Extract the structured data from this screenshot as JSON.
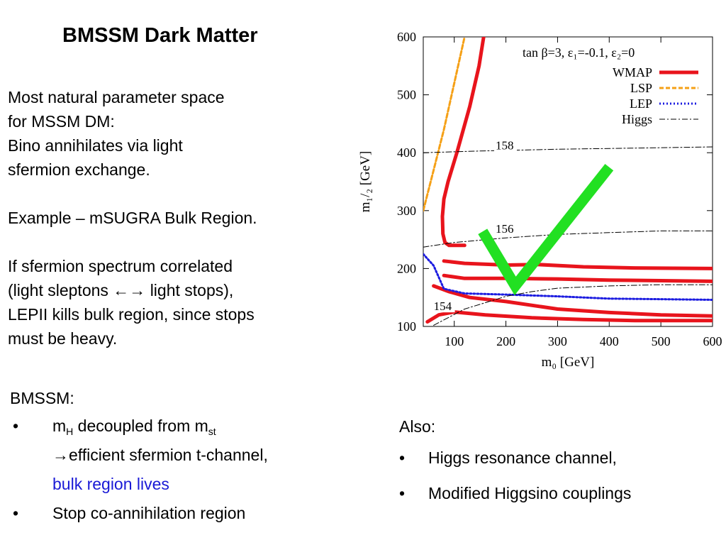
{
  "slide": {
    "title": "BMSSM Dark Matter",
    "intro_lines": [
      "Most natural parameter space",
      "for MSSM DM:",
      "Bino annihilates via light",
      "sfermion exchange.",
      "",
      "Example – mSUGRA Bulk Region.",
      "",
      "If sfermion spectrum correlated",
      "(light sleptons ←→ light stops),",
      "LEPII kills bulk region, since stops",
      "must be heavy."
    ],
    "bmssm": {
      "heading": "BMSSM:",
      "bullet_glyph": "•",
      "item1_m": "m",
      "item1_sub_h": "H",
      "item1_mid": " decoupled from m",
      "item1_sub_st": "st",
      "item1_line2": "→efficient sfermion t-channel,",
      "item1_line3": "bulk region lives",
      "item2": "Stop co-annihilation region"
    },
    "also": {
      "heading": "Also:",
      "bullet_glyph": "•",
      "items": [
        "Higgs resonance channel,",
        "Modified Higgsino couplings"
      ]
    }
  },
  "chart_data": {
    "type": "line",
    "xlabel": "m₀  [GeV]",
    "ylabel": "m₁/₂  [GeV]",
    "xlim": [
      40,
      600
    ],
    "ylim": [
      100,
      600
    ],
    "xticks": [
      100,
      200,
      300,
      400,
      500,
      600
    ],
    "yticks": [
      100,
      200,
      300,
      400,
      500,
      600
    ],
    "grid": false,
    "legend_position": "top-right",
    "annotation": "tan β=3, ε₁=-0.1, ε₂=0",
    "legend": [
      {
        "name": "WMAP",
        "color": "#e8141c",
        "style": "solid"
      },
      {
        "name": "LSP",
        "color": "#f5a016",
        "style": "dashed"
      },
      {
        "name": "LEP",
        "color": "#1c1ce0",
        "style": "dotted"
      },
      {
        "name": "Higgs",
        "color": "#000000",
        "style": "dashdot"
      }
    ],
    "contour_labels": [
      "158",
      "156",
      "154"
    ],
    "series": [
      {
        "name": "WMAP",
        "role": "left-branch",
        "points": [
          [
            157,
            600
          ],
          [
            148,
            550
          ],
          [
            130,
            480
          ],
          [
            105,
            400
          ],
          [
            88,
            350
          ],
          [
            80,
            320
          ],
          [
            77,
            290
          ],
          [
            78,
            260
          ],
          [
            82,
            245
          ],
          [
            90,
            240
          ],
          [
            120,
            240
          ]
        ]
      },
      {
        "name": "WMAP",
        "role": "band-1",
        "points": [
          [
            80,
            213
          ],
          [
            120,
            209
          ],
          [
            200,
            206
          ],
          [
            260,
            207
          ],
          [
            350,
            203
          ],
          [
            450,
            201
          ],
          [
            600,
            200
          ]
        ]
      },
      {
        "name": "WMAP",
        "role": "band-2",
        "points": [
          [
            80,
            188
          ],
          [
            120,
            183
          ],
          [
            200,
            183
          ],
          [
            300,
            182
          ],
          [
            400,
            180
          ],
          [
            500,
            179
          ],
          [
            600,
            178
          ]
        ]
      },
      {
        "name": "WMAP",
        "role": "band-3",
        "points": [
          [
            60,
            170
          ],
          [
            90,
            160
          ],
          [
            130,
            150
          ],
          [
            200,
            143
          ],
          [
            300,
            130
          ],
          [
            400,
            124
          ],
          [
            500,
            120
          ],
          [
            600,
            118
          ]
        ]
      },
      {
        "name": "WMAP",
        "role": "band-4",
        "points": [
          [
            48,
            108
          ],
          [
            70,
            120
          ],
          [
            100,
            125
          ],
          [
            160,
            120
          ],
          [
            250,
            115
          ],
          [
            350,
            112
          ],
          [
            450,
            110
          ],
          [
            600,
            110
          ]
        ]
      },
      {
        "name": "LSP",
        "points": [
          [
            40,
            300
          ],
          [
            60,
            370
          ],
          [
            80,
            440
          ],
          [
            100,
            520
          ],
          [
            120,
            600
          ]
        ]
      },
      {
        "name": "LEP",
        "points": [
          [
            40,
            225
          ],
          [
            60,
            205
          ],
          [
            80,
            165
          ],
          [
            120,
            157
          ],
          [
            200,
            155
          ],
          [
            300,
            152
          ],
          [
            400,
            148
          ],
          [
            500,
            147
          ],
          [
            600,
            146
          ]
        ]
      },
      {
        "name": "Higgs",
        "label": "158",
        "points": [
          [
            40,
            400
          ],
          [
            150,
            403
          ],
          [
            300,
            406
          ],
          [
            450,
            408
          ],
          [
            600,
            410
          ]
        ]
      },
      {
        "name": "Higgs",
        "label": "156",
        "points": [
          [
            40,
            237
          ],
          [
            100,
            245
          ],
          [
            200,
            253
          ],
          [
            300,
            259
          ],
          [
            400,
            262
          ],
          [
            500,
            265
          ],
          [
            600,
            265
          ]
        ]
      },
      {
        "name": "Higgs",
        "label": "154",
        "points": [
          [
            60,
            102
          ],
          [
            120,
            130
          ],
          [
            200,
            152
          ],
          [
            250,
            160
          ],
          [
            300,
            166
          ],
          [
            400,
            170
          ],
          [
            500,
            172
          ],
          [
            600,
            172
          ]
        ]
      }
    ],
    "overlay": {
      "shape": "checkmark",
      "color": "#22e022",
      "points": [
        [
          155,
          264
        ],
        [
          218,
          170
        ],
        [
          400,
          375
        ]
      ]
    }
  }
}
